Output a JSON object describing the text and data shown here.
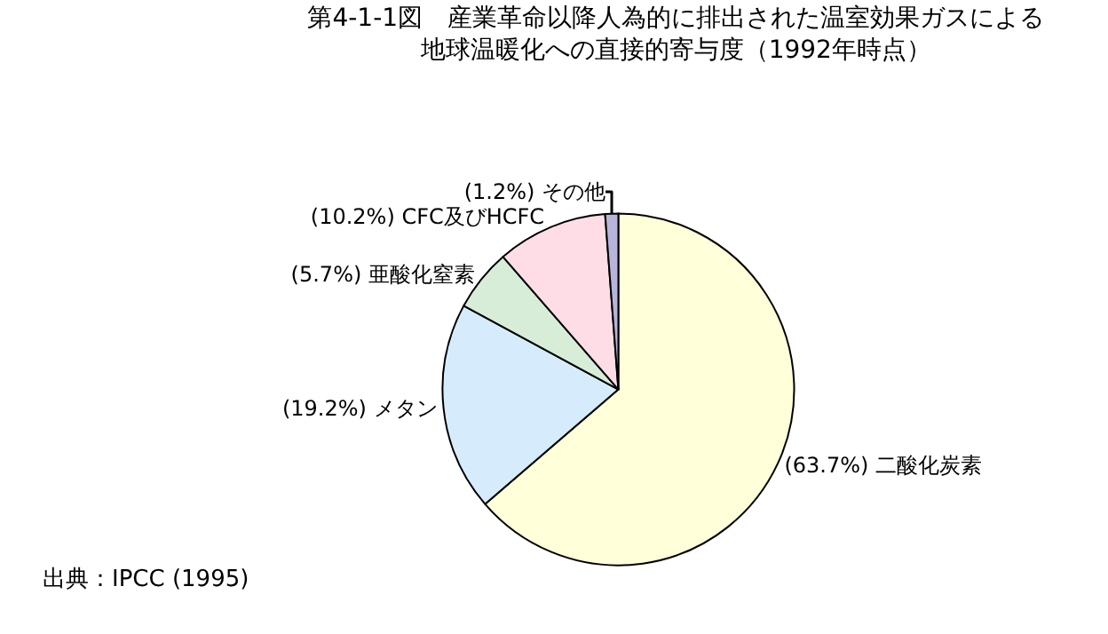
{
  "chart_data": {
    "type": "pie",
    "title": "第4-1-1図　産業革命以降人為的に排出された温室効果ガスによる地球温暖化への直接的寄与度（1992年時点）",
    "categories": [
      "二酸化炭素",
      "メタン",
      "亜酸化窒素",
      "CFC及びHCFC",
      "その他"
    ],
    "values": [
      63.7,
      19.2,
      5.7,
      10.2,
      1.2
    ],
    "value_labels": [
      "(63.7%)",
      "(19.2%)",
      "(5.7%)",
      "(10.2%)",
      "(1.2%)"
    ],
    "colors": [
      "#ffffd9",
      "#d6ecfc",
      "#d7edd7",
      "#ffdde6",
      "#b8b4dc"
    ],
    "annotations": [
      "出典：IPCC (1995)"
    ],
    "legend": false
  }
}
